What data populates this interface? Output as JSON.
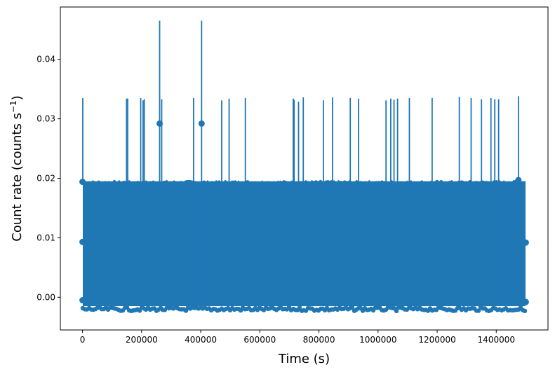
{
  "chart_data": {
    "type": "scatter",
    "title": "",
    "xlabel": "Time (s)",
    "ylabel_main": "Count rate (counts s",
    "ylabel_sup": "−1",
    "ylabel_close": ")",
    "xlim": [
      -75000,
      1575000
    ],
    "ylim": [
      -0.0055,
      0.0488
    ],
    "x_ticks": [
      0,
      200000,
      400000,
      600000,
      800000,
      1000000,
      1200000,
      1400000
    ],
    "x_tick_labels": [
      "0",
      "200000",
      "400000",
      "600000",
      "800000",
      "1000000",
      "1200000",
      "1400000"
    ],
    "y_ticks": [
      0.0,
      0.01,
      0.02,
      0.03,
      0.04
    ],
    "y_tick_labels": [
      "0.00",
      "0.01",
      "0.02",
      "0.03",
      "0.04"
    ],
    "grid": false,
    "legend": "none",
    "series_color": "#1f77b4",
    "observation_range": [
      0,
      1500000
    ],
    "typical_error_envelope": [
      -0.0015,
      0.0195
    ],
    "outlier_points": [
      {
        "x": 261000,
        "y": 0.0292,
        "yerr_low": 0.0,
        "yerr_high": 0.0465
      },
      {
        "x": 403000,
        "y": 0.0292,
        "yerr_low": 0.0,
        "yerr_high": 0.0465
      }
    ],
    "single_count_bins": [
      {
        "x": 1000,
        "y": 0.0194,
        "yerr_high": 0.0335
      },
      {
        "x": 149000,
        "y": 0.0194,
        "yerr_high": 0.0334
      },
      {
        "x": 153000,
        "y": 0.0194,
        "yerr_high": 0.0334
      },
      {
        "x": 197000,
        "y": 0.0194,
        "yerr_high": 0.0335
      },
      {
        "x": 205000,
        "y": 0.0194,
        "yerr_high": 0.0331
      },
      {
        "x": 209000,
        "y": 0.0194,
        "yerr_high": 0.0333
      },
      {
        "x": 268000,
        "y": 0.0194,
        "yerr_high": 0.0333
      },
      {
        "x": 376000,
        "y": 0.0194,
        "yerr_high": 0.0335
      },
      {
        "x": 471000,
        "y": 0.0194,
        "yerr_high": 0.0331
      },
      {
        "x": 496000,
        "y": 0.0194,
        "yerr_high": 0.0334
      },
      {
        "x": 551000,
        "y": 0.0194,
        "yerr_high": 0.0335
      },
      {
        "x": 713000,
        "y": 0.0194,
        "yerr_high": 0.0334
      },
      {
        "x": 716000,
        "y": 0.0194,
        "yerr_high": 0.0332
      },
      {
        "x": 731000,
        "y": 0.0194,
        "yerr_high": 0.0329
      },
      {
        "x": 747000,
        "y": 0.0194,
        "yerr_high": 0.0336
      },
      {
        "x": 815000,
        "y": 0.0194,
        "yerr_high": 0.0331
      },
      {
        "x": 846000,
        "y": 0.0194,
        "yerr_high": 0.0336
      },
      {
        "x": 906000,
        "y": 0.0194,
        "yerr_high": 0.0335
      },
      {
        "x": 934000,
        "y": 0.0194,
        "yerr_high": 0.0334
      },
      {
        "x": 1027000,
        "y": 0.0194,
        "yerr_high": 0.0331
      },
      {
        "x": 1043000,
        "y": 0.0194,
        "yerr_high": 0.0334
      },
      {
        "x": 1054000,
        "y": 0.0194,
        "yerr_high": 0.0332
      },
      {
        "x": 1066000,
        "y": 0.0194,
        "yerr_high": 0.0334
      },
      {
        "x": 1106000,
        "y": 0.0194,
        "yerr_high": 0.0335
      },
      {
        "x": 1183000,
        "y": 0.0194,
        "yerr_high": 0.0335
      },
      {
        "x": 1275000,
        "y": 0.0194,
        "yerr_high": 0.0337
      },
      {
        "x": 1315000,
        "y": 0.0194,
        "yerr_high": 0.0335
      },
      {
        "x": 1350000,
        "y": 0.0194,
        "yerr_high": 0.0333
      },
      {
        "x": 1382000,
        "y": 0.0194,
        "yerr_high": 0.0335
      },
      {
        "x": 1395000,
        "y": 0.0194,
        "yerr_high": 0.0333
      },
      {
        "x": 1408000,
        "y": 0.0194,
        "yerr_high": 0.0333
      },
      {
        "x": 1475000,
        "y": 0.0194,
        "yerr_high": 0.0338
      }
    ]
  }
}
